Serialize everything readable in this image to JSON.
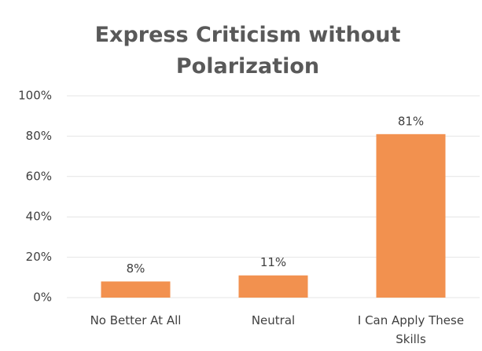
{
  "chart_data": {
    "type": "bar",
    "title": "Express Criticism without Polarization",
    "categories": [
      "No Better At All",
      "Neutral",
      "I Can Apply These Skills"
    ],
    "values": [
      8,
      11,
      81
    ],
    "value_labels": [
      "8%",
      "11%",
      "81%"
    ],
    "color": "#f2914f",
    "ylim": [
      0,
      100
    ],
    "yticks": [
      {
        "value": 0,
        "label": "0%"
      },
      {
        "value": 20,
        "label": "20%"
      },
      {
        "value": 40,
        "label": "40%"
      },
      {
        "value": 60,
        "label": "60%"
      },
      {
        "value": 80,
        "label": "80%"
      },
      {
        "value": 100,
        "label": "100%"
      }
    ],
    "grid": true
  }
}
